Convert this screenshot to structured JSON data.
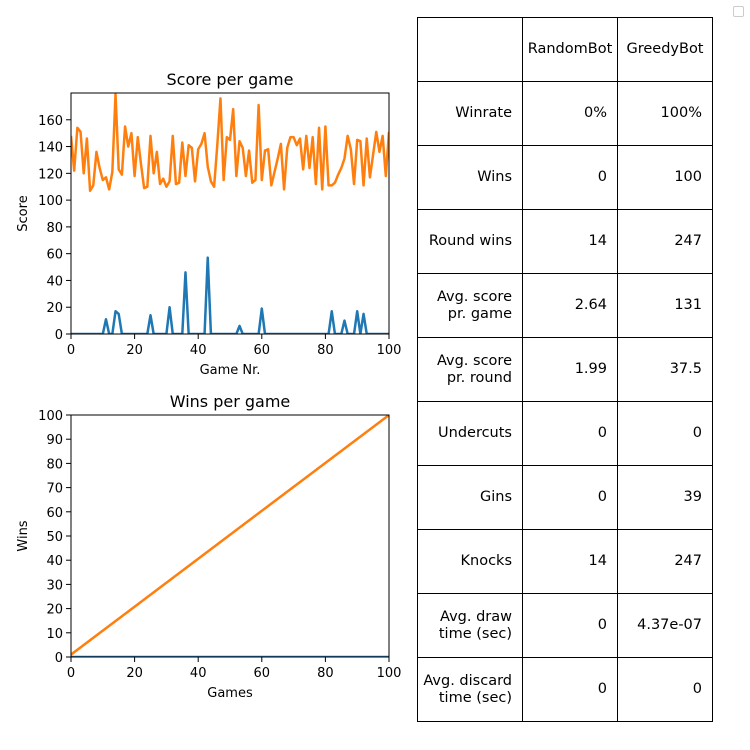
{
  "chart_data": [
    {
      "type": "line",
      "title": "Score per game",
      "xlabel": "Game Nr.",
      "ylabel": "Score",
      "xlim": [
        0,
        100
      ],
      "ylim": [
        0,
        180
      ],
      "xticks": [
        0,
        20,
        40,
        60,
        80,
        100
      ],
      "yticks": [
        0,
        20,
        40,
        60,
        80,
        100,
        120,
        140,
        160
      ],
      "grid": false,
      "series": [
        {
          "color": "#1f77b4",
          "x": [
            0,
            10,
            11,
            12,
            13,
            14,
            15,
            16,
            24,
            25,
            26,
            30,
            31,
            32,
            35,
            36,
            37,
            42,
            43,
            44,
            52,
            53,
            54,
            59,
            60,
            61,
            81,
            82,
            83,
            84,
            85,
            86,
            87,
            89,
            90,
            91,
            92,
            93,
            94,
            100
          ],
          "y": [
            0,
            0,
            11,
            0,
            0,
            17,
            15,
            0,
            0,
            14,
            0,
            0,
            20,
            0,
            0,
            46,
            0,
            0,
            57,
            0,
            0,
            6,
            0,
            0,
            19,
            0,
            0,
            17,
            0,
            0,
            0,
            10,
            0,
            0,
            17,
            0,
            15,
            0,
            0,
            0
          ]
        },
        {
          "color": "#ff7f0e",
          "x": [
            0,
            1,
            2,
            3,
            4,
            5,
            6,
            7,
            8,
            9,
            10,
            11,
            12,
            13,
            14,
            15,
            16,
            17,
            18,
            19,
            20,
            21,
            22,
            23,
            24,
            25,
            26,
            27,
            28,
            29,
            30,
            31,
            32,
            33,
            34,
            35,
            36,
            37,
            38,
            39,
            40,
            41,
            42,
            43,
            44,
            45,
            46,
            47,
            48,
            49,
            50,
            51,
            52,
            53,
            54,
            55,
            56,
            57,
            58,
            59,
            60,
            61,
            62,
            63,
            64,
            65,
            66,
            67,
            68,
            69,
            70,
            71,
            72,
            73,
            74,
            75,
            76,
            77,
            78,
            79,
            80,
            81,
            82,
            83,
            84,
            85,
            86,
            87,
            88,
            89,
            90,
            91,
            92,
            93,
            94,
            95,
            96,
            97,
            98,
            99,
            100
          ],
          "y": [
            148,
            122,
            154,
            151,
            120,
            146,
            107,
            111,
            136,
            124,
            115,
            117,
            108,
            121,
            179,
            123,
            119,
            155,
            140,
            150,
            118,
            147,
            127,
            109,
            110,
            148,
            120,
            136,
            112,
            116,
            110,
            114,
            148,
            112,
            113,
            143,
            118,
            141,
            139,
            114,
            138,
            142,
            150,
            125,
            114,
            110,
            141,
            176,
            115,
            147,
            145,
            168,
            118,
            144,
            139,
            118,
            137,
            113,
            115,
            171,
            115,
            137,
            138,
            111,
            121,
            131,
            142,
            108,
            139,
            147,
            147,
            141,
            146,
            123,
            148,
            124,
            147,
            112,
            154,
            108,
            155,
            111,
            111,
            113,
            119,
            124,
            131,
            148,
            138,
            112,
            145,
            144,
            111,
            146,
            117,
            134,
            151,
            136,
            148,
            118,
            151
          ]
        }
      ]
    },
    {
      "type": "line",
      "title": "Wins per game",
      "xlabel": "Games",
      "ylabel": "Wins",
      "xlim": [
        0,
        100
      ],
      "ylim": [
        0,
        100
      ],
      "xticks": [
        0,
        20,
        40,
        60,
        80,
        100
      ],
      "yticks": [
        0,
        10,
        20,
        30,
        40,
        50,
        60,
        70,
        80,
        90,
        100
      ],
      "grid": false,
      "series": [
        {
          "color": "#1f77b4",
          "x": [
            0,
            100
          ],
          "y": [
            0,
            0
          ]
        },
        {
          "color": "#ff7f0e",
          "x": [
            0,
            100
          ],
          "y": [
            1,
            100
          ]
        }
      ]
    },
    {
      "type": "table",
      "columns": [
        "",
        "RandomBot",
        "GreedyBot"
      ],
      "rows": [
        [
          "Winrate",
          "0%",
          "100%"
        ],
        [
          "Wins",
          "0",
          "100"
        ],
        [
          "Round wins",
          "14",
          "247"
        ],
        [
          "Avg. score\npr. game",
          "2.64",
          "131"
        ],
        [
          "Avg. score\npr. round",
          "1.99",
          "37.5"
        ],
        [
          "Undercuts",
          "0",
          "0"
        ],
        [
          "Gins",
          "0",
          "39"
        ],
        [
          "Knocks",
          "14",
          "247"
        ],
        [
          "Avg. draw\ntime (sec)",
          "0",
          "4.37e-07"
        ],
        [
          "Avg. discard\ntime (sec)",
          "0",
          "0"
        ]
      ]
    }
  ]
}
